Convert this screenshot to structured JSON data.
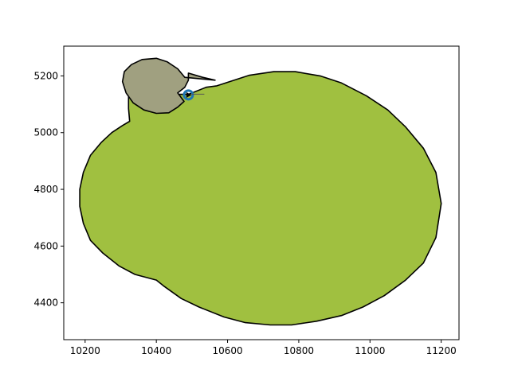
{
  "chart_data": {
    "type": "area",
    "title": "",
    "xlabel": "",
    "ylabel": "",
    "xlim": [
      10140,
      11250
    ],
    "ylim": [
      4270,
      5305
    ],
    "xticks": [
      10200,
      10400,
      10600,
      10800,
      11000,
      11200
    ],
    "yticks": [
      4400,
      4600,
      4800,
      5000,
      5200
    ],
    "grid": false,
    "legend": "none",
    "series": [
      {
        "kind": "polygon",
        "color": "#a0c040",
        "edge": "#000000",
        "points": [
          [
            10570,
            5165
          ],
          [
            10660,
            5202
          ],
          [
            10730,
            5215
          ],
          [
            10790,
            5215
          ],
          [
            10860,
            5200
          ],
          [
            10920,
            5175
          ],
          [
            10990,
            5130
          ],
          [
            11050,
            5080
          ],
          [
            11100,
            5020
          ],
          [
            11150,
            4945
          ],
          [
            11185,
            4860
          ],
          [
            11200,
            4750
          ],
          [
            11185,
            4630
          ],
          [
            11150,
            4540
          ],
          [
            11100,
            4480
          ],
          [
            11040,
            4425
          ],
          [
            10980,
            4385
          ],
          [
            10920,
            4355
          ],
          [
            10850,
            4335
          ],
          [
            10780,
            4322
          ],
          [
            10720,
            4322
          ],
          [
            10650,
            4330
          ],
          [
            10590,
            4350
          ],
          [
            10520,
            4385
          ],
          [
            10470,
            4415
          ],
          [
            10420,
            4460
          ],
          [
            10400,
            4480
          ],
          [
            10340,
            4500
          ],
          [
            10295,
            4530
          ],
          [
            10250,
            4575
          ],
          [
            10215,
            4620
          ],
          [
            10195,
            4680
          ],
          [
            10185,
            4740
          ],
          [
            10185,
            4800
          ],
          [
            10195,
            4860
          ],
          [
            10215,
            4920
          ],
          [
            10245,
            4965
          ],
          [
            10275,
            5000
          ],
          [
            10305,
            5025
          ],
          [
            10325,
            5040
          ],
          [
            10322,
            5085
          ],
          [
            10322,
            5130
          ],
          [
            10350,
            5140
          ],
          [
            10420,
            5150
          ],
          [
            10460,
            5135
          ],
          [
            10490,
            5135
          ],
          [
            10540,
            5160
          ]
        ]
      },
      {
        "kind": "polygon",
        "color": "#a0a080",
        "edge": "#000000",
        "points": [
          [
            10460,
            5140
          ],
          [
            10480,
            5160
          ],
          [
            10490,
            5185
          ],
          [
            10490,
            5210
          ],
          [
            10530,
            5195
          ],
          [
            10565,
            5185
          ],
          [
            10480,
            5195
          ],
          [
            10460,
            5225
          ],
          [
            10430,
            5250
          ],
          [
            10400,
            5262
          ],
          [
            10360,
            5258
          ],
          [
            10330,
            5240
          ],
          [
            10310,
            5215
          ],
          [
            10305,
            5180
          ],
          [
            10315,
            5140
          ],
          [
            10335,
            5105
          ],
          [
            10365,
            5080
          ],
          [
            10400,
            5068
          ],
          [
            10435,
            5070
          ],
          [
            10460,
            5090
          ],
          [
            10478,
            5110
          ]
        ]
      },
      {
        "kind": "marker",
        "color": "#1f77b4",
        "x": 10490,
        "y": 5133
      },
      {
        "kind": "arrow",
        "color": "#000000",
        "x": 10490,
        "y": 5133
      }
    ]
  }
}
